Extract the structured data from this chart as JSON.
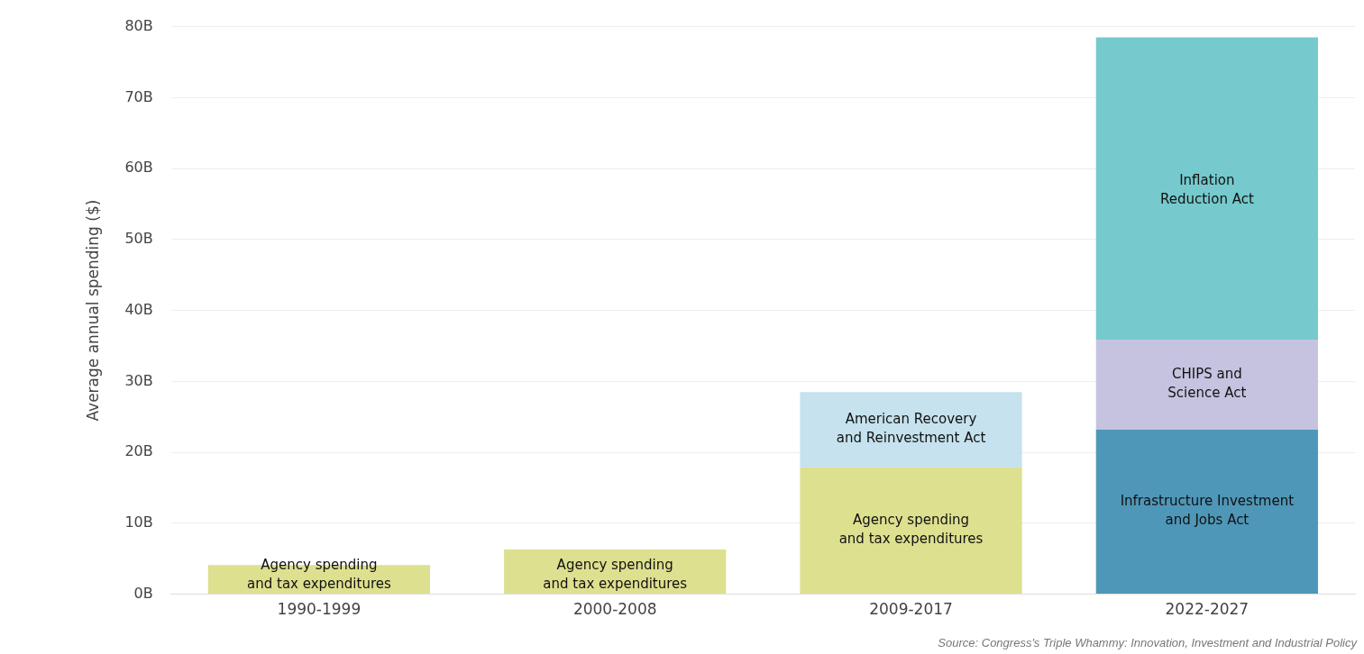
{
  "chart_data": {
    "type": "bar",
    "stacked": true,
    "ylabel": "Average annual spending ($)",
    "categories": [
      "1990-1999",
      "2000-2008",
      "2009-2017",
      "2022-2027"
    ],
    "series": [
      {
        "name": "Agency spending\nand tax expenditures",
        "color": "#dde08f",
        "values": [
          4.1,
          6.3,
          17.9,
          null
        ]
      },
      {
        "name": "American Recovery\nand Reinvestment Act",
        "color": "#c5e2ee",
        "values": [
          null,
          null,
          10.6,
          null
        ]
      },
      {
        "name": "Infrastructure Investment\nand Jobs Act",
        "color": "#4f97b8",
        "values": [
          null,
          null,
          null,
          23.2
        ]
      },
      {
        "name": "CHIPS and\nScience Act",
        "color": "#c5c3e0",
        "values": [
          null,
          null,
          null,
          12.7
        ]
      },
      {
        "name": "Inflation\nReduction Act",
        "color": "#76c9cc",
        "values": [
          null,
          null,
          null,
          42.6
        ]
      }
    ],
    "ylim": [
      0,
      80
    ],
    "yticks": [
      {
        "value": 0,
        "label": "0B"
      },
      {
        "value": 10,
        "label": "10B"
      },
      {
        "value": 20,
        "label": "20B"
      },
      {
        "value": 30,
        "label": "30B"
      },
      {
        "value": 40,
        "label": "40B"
      },
      {
        "value": 50,
        "label": "50B"
      },
      {
        "value": 60,
        "label": "60B"
      },
      {
        "value": 70,
        "label": "70B"
      },
      {
        "value": 80,
        "label": "80B"
      }
    ],
    "grid": "y",
    "legend": false,
    "annotations": [
      "Source: Congress's Triple Whammy: Innovation, Investment and Industrial Policy"
    ]
  }
}
